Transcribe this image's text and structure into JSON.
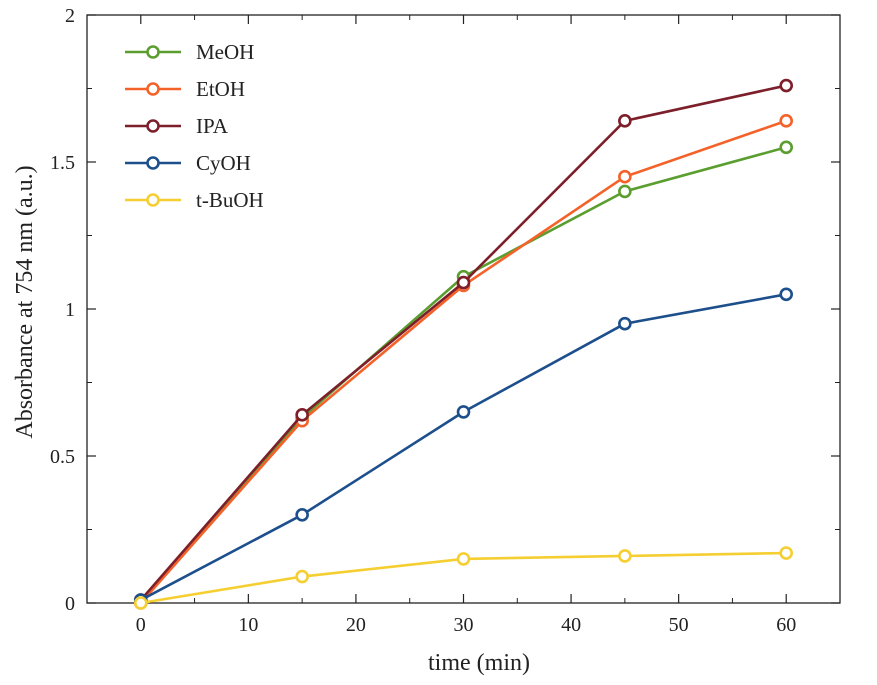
{
  "chart_data": {
    "type": "line",
    "xlabel": "time (min)",
    "ylabel": "Absorbance at 754 nm (a.u.)",
    "xlim": [
      -5,
      65
    ],
    "ylim": [
      0,
      2
    ],
    "x_ticks": [
      0,
      10,
      20,
      30,
      40,
      50,
      60
    ],
    "y_ticks": [
      0,
      0.5,
      1,
      1.5,
      2
    ],
    "y_tick_labels": [
      "0",
      "0.5",
      "1",
      "1.5",
      "2"
    ],
    "x": [
      0,
      15,
      30,
      45,
      60
    ],
    "legend_position": "top-left",
    "grid": false,
    "series": [
      {
        "name": "MeOH",
        "color": "#5a9e2f",
        "values": [
          0.01,
          0.63,
          1.11,
          1.4,
          1.55
        ]
      },
      {
        "name": "EtOH",
        "color": "#f4622a",
        "values": [
          0.0,
          0.62,
          1.08,
          1.45,
          1.64
        ]
      },
      {
        "name": "IPA",
        "color": "#7d1f2a",
        "values": [
          0.01,
          0.64,
          1.09,
          1.64,
          1.76
        ]
      },
      {
        "name": "CyOH",
        "color": "#1c4f8c",
        "values": [
          0.01,
          0.3,
          0.65,
          0.95,
          1.05
        ]
      },
      {
        "name": "t-BuOH",
        "color": "#f5cf32",
        "values": [
          0.0,
          0.09,
          0.15,
          0.16,
          0.17
        ]
      }
    ]
  }
}
